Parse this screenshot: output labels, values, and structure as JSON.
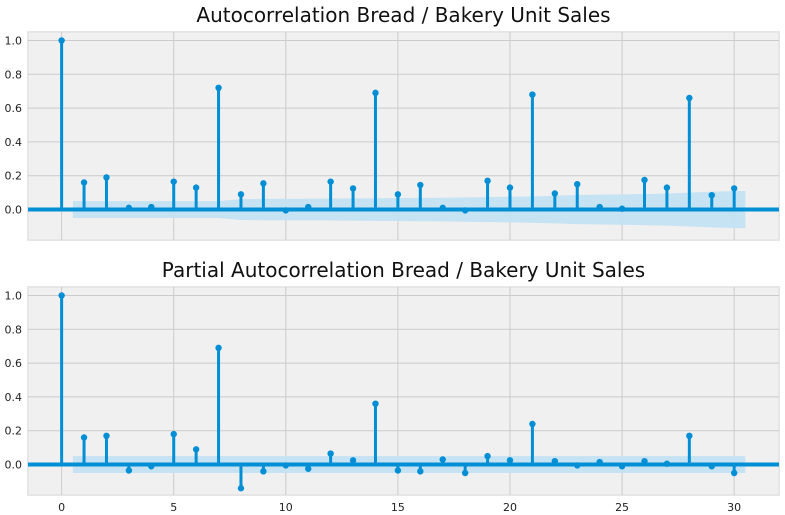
{
  "chart_data": [
    {
      "type": "stem",
      "title": "Autocorrelation Bread / Bakery Unit Sales",
      "xlabel": "",
      "ylabel": "",
      "xlim": [
        -1.5,
        32
      ],
      "ylim": [
        -0.18,
        1.05
      ],
      "grid": true,
      "x_ticks": [],
      "y_ticks": [
        "0.0",
        "0.2",
        "0.4",
        "0.6",
        "0.8",
        "1.0"
      ],
      "colors": {
        "stem": "#008fd5",
        "band": "#c3e1f3",
        "axes_bg": "#f0f0f0",
        "grid": "#cbcbcb"
      },
      "lags": [
        0,
        1,
        2,
        3,
        4,
        5,
        6,
        7,
        8,
        9,
        10,
        11,
        12,
        13,
        14,
        15,
        16,
        17,
        18,
        19,
        20,
        21,
        22,
        23,
        24,
        25,
        26,
        27,
        28,
        29,
        30
      ],
      "values": [
        1.0,
        0.16,
        0.19,
        0.01,
        0.015,
        0.165,
        0.13,
        0.72,
        0.09,
        0.155,
        -0.005,
        0.015,
        0.165,
        0.125,
        0.69,
        0.09,
        0.145,
        0.01,
        -0.005,
        0.17,
        0.13,
        0.68,
        0.095,
        0.15,
        0.015,
        0.005,
        0.175,
        0.13,
        0.66,
        0.085,
        0.125
      ],
      "conf_upper": [
        0,
        0.05,
        0.05,
        0.05,
        0.05,
        0.05,
        0.05,
        0.05,
        0.062,
        0.063,
        0.064,
        0.064,
        0.065,
        0.066,
        0.067,
        0.068,
        0.069,
        0.07,
        0.072,
        0.074,
        0.076,
        0.078,
        0.082,
        0.086,
        0.088,
        0.09,
        0.092,
        0.095,
        0.1,
        0.105,
        0.11
      ]
    },
    {
      "type": "stem",
      "title": "Partial Autocorrelation Bread / Bakery Unit Sales",
      "xlabel": "",
      "ylabel": "",
      "xlim": [
        -1.5,
        32
      ],
      "ylim": [
        -0.18,
        1.05
      ],
      "grid": true,
      "x_ticks": [
        "0",
        "5",
        "10",
        "15",
        "20",
        "25",
        "30"
      ],
      "y_ticks": [
        "0.0",
        "0.2",
        "0.4",
        "0.6",
        "0.8",
        "1.0"
      ],
      "colors": {
        "stem": "#008fd5",
        "band": "#c3e1f3",
        "axes_bg": "#f0f0f0",
        "grid": "#cbcbcb"
      },
      "lags": [
        0,
        1,
        2,
        3,
        4,
        5,
        6,
        7,
        8,
        9,
        10,
        11,
        12,
        13,
        14,
        15,
        16,
        17,
        18,
        19,
        20,
        21,
        22,
        23,
        24,
        25,
        26,
        27,
        28,
        29,
        30
      ],
      "values": [
        1.0,
        0.16,
        0.17,
        -0.035,
        -0.01,
        0.18,
        0.09,
        0.69,
        -0.14,
        -0.04,
        -0.005,
        -0.025,
        0.065,
        0.025,
        0.36,
        -0.035,
        -0.04,
        0.03,
        -0.05,
        0.05,
        0.025,
        0.24,
        0.02,
        -0.005,
        0.015,
        -0.01,
        0.02,
        0.005,
        0.17,
        -0.01,
        -0.05
      ],
      "conf_upper": [
        0,
        0.05,
        0.05,
        0.05,
        0.05,
        0.05,
        0.05,
        0.05,
        0.05,
        0.05,
        0.05,
        0.05,
        0.05,
        0.05,
        0.05,
        0.05,
        0.05,
        0.05,
        0.05,
        0.05,
        0.05,
        0.05,
        0.05,
        0.05,
        0.05,
        0.05,
        0.05,
        0.05,
        0.05,
        0.05,
        0.05
      ]
    }
  ]
}
